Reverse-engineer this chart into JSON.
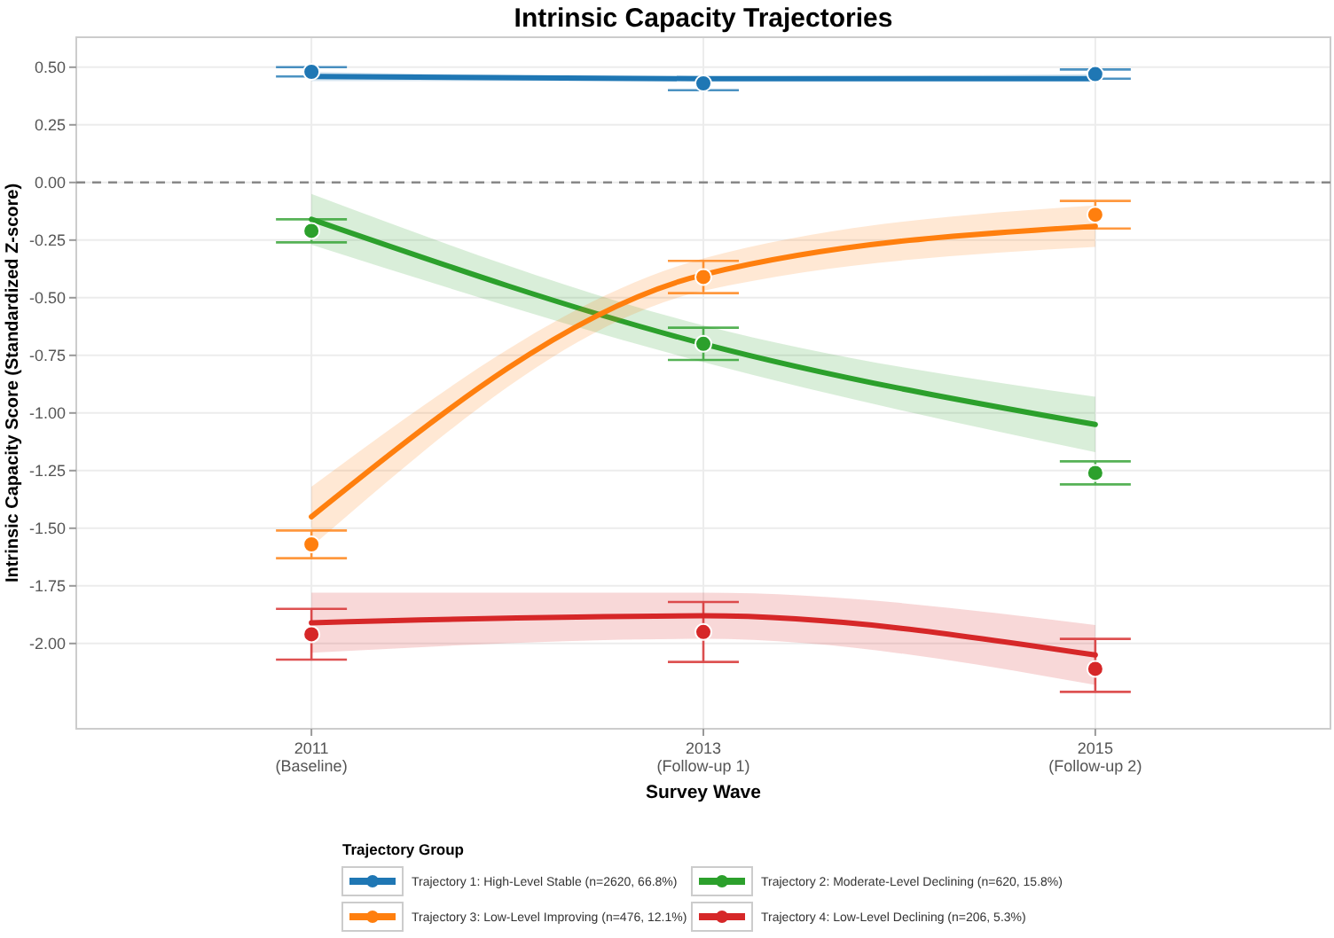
{
  "chart_data": {
    "type": "line",
    "title": "Intrinsic Capacity Trajectories",
    "xlabel": "Survey Wave",
    "ylabel": "Intrinsic Capacity Score (Standardized Z-score)",
    "legend_title": "Trajectory Group",
    "categories": [
      "2011\n(Baseline)",
      "2013\n(Follow-up 1)",
      "2015\n(Follow-up 2)"
    ],
    "ylim": [
      -2.37,
      0.63
    ],
    "yticks": [
      {
        "value": 0.5,
        "label": "0.50"
      },
      {
        "value": 0.25,
        "label": "0.25"
      },
      {
        "value": 0,
        "label": "0.00"
      },
      {
        "value": -0.25,
        "label": "-0.25"
      },
      {
        "value": -0.5,
        "label": "-0.50"
      },
      {
        "value": -0.75,
        "label": "-0.75"
      },
      {
        "value": -1,
        "label": "-1.00"
      },
      {
        "value": -1.25,
        "label": "-1.25"
      },
      {
        "value": -1.5,
        "label": "-1.50"
      },
      {
        "value": -1.75,
        "label": "-1.75"
      },
      {
        "value": -2,
        "label": "-2.00"
      }
    ],
    "grid": true,
    "legend": "bottom",
    "line_style": "solid",
    "ref_lines": [
      {
        "axis": "y",
        "value": 0,
        "color": "#888888",
        "line_style": "dashed"
      }
    ],
    "series": [
      {
        "name": "Trajectory 1: High-Level Stable (n=2620, 66.8%)",
        "color": "#1f77b4",
        "values": [
          0.46,
          0.45,
          0.45
        ],
        "lower": [
          0.44,
          0.44,
          0.44
        ],
        "upper": [
          0.48,
          0.46,
          0.47
        ]
      },
      {
        "name": "Trajectory 2: Moderate-Level Declining (n=620, 15.8%)",
        "color": "#2ca02c",
        "values": [
          -0.16,
          -0.7,
          -1.05
        ],
        "lower": [
          -0.27,
          -0.78,
          -1.17
        ],
        "upper": [
          -0.05,
          -0.62,
          -0.93
        ]
      },
      {
        "name": "Trajectory 3: Low-Level Improving (n=476, 12.1%)",
        "color": "#ff7f0e",
        "values": [
          -1.45,
          -0.4,
          -0.19
        ],
        "lower": [
          -1.58,
          -0.47,
          -0.28
        ],
        "upper": [
          -1.32,
          -0.33,
          -0.1
        ]
      },
      {
        "name": "Trajectory 4: Low-Level Declining (n=206, 5.3%)",
        "color": "#d62728",
        "values": [
          -1.91,
          -1.88,
          -2.05
        ],
        "lower": [
          -2.04,
          -1.98,
          -2.18
        ],
        "upper": [
          -1.78,
          -1.78,
          -1.92
        ]
      },
      {
        "type": "scatter",
        "marker": "circle",
        "color": "#1f77b4",
        "values": [
          0.48,
          0.43,
          0.47
        ],
        "errors": [
          [
            0.46,
            0.5
          ],
          [
            0.4,
            0.45
          ],
          [
            0.45,
            0.49
          ]
        ]
      },
      {
        "type": "scatter",
        "marker": "circle",
        "color": "#2ca02c",
        "values": [
          -0.21,
          -0.7,
          -1.26
        ],
        "errors": [
          [
            -0.26,
            -0.16
          ],
          [
            -0.77,
            -0.63
          ],
          [
            -1.31,
            -1.21
          ]
        ]
      },
      {
        "type": "scatter",
        "marker": "circle",
        "color": "#ff7f0e",
        "values": [
          -1.57,
          -0.41,
          -0.14
        ],
        "errors": [
          [
            -1.63,
            -1.51
          ],
          [
            -0.48,
            -0.34
          ],
          [
            -0.2,
            -0.08
          ]
        ]
      },
      {
        "type": "scatter",
        "marker": "circle",
        "color": "#d62728",
        "values": [
          -1.96,
          -1.95,
          -2.11
        ],
        "errors": [
          [
            -2.07,
            -1.85
          ],
          [
            -2.08,
            -1.82
          ],
          [
            -2.21,
            -1.98
          ]
        ]
      }
    ]
  }
}
